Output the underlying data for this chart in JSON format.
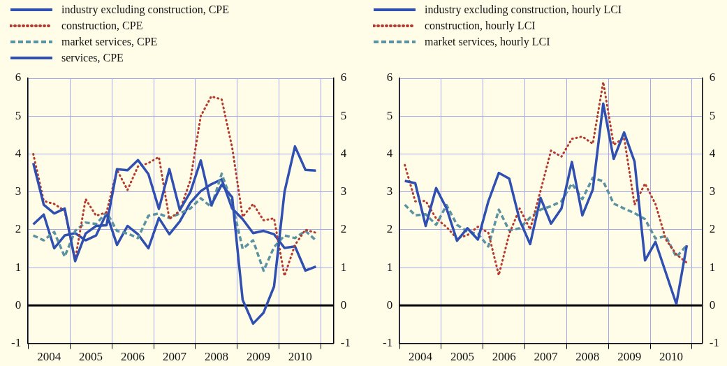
{
  "chart_data": [
    {
      "type": "line",
      "legend": "top left",
      "grid": true,
      "x": [
        2004.125,
        2004.375,
        2004.625,
        2004.875,
        2005.125,
        2005.375,
        2005.625,
        2005.875,
        2006.125,
        2006.375,
        2006.625,
        2006.875,
        2007.125,
        2007.375,
        2007.625,
        2007.875,
        2008.125,
        2008.375,
        2008.625,
        2008.875,
        2009.125,
        2009.375,
        2009.625,
        2009.875,
        2010.125,
        2010.375,
        2010.625,
        2010.875
      ],
      "series": [
        {
          "name": "industry excluding construction, CPE",
          "color": "#2f4fb1",
          "line_style": "solid",
          "values": [
            3.76,
            2.66,
            2.43,
            2.56,
            1.17,
            1.9,
            2.1,
            2.12,
            3.6,
            3.57,
            3.84,
            3.47,
            2.55,
            3.6,
            2.52,
            2.99,
            3.83,
            2.65,
            3.19,
            2.86,
            0.15,
            -0.48,
            -0.19,
            0.5,
            3.0,
            4.2,
            3.58,
            3.56
          ]
        },
        {
          "name": "construction, CPE",
          "color": "#b5392c",
          "line_style": "dotted",
          "values": [
            4.0,
            2.76,
            2.68,
            2.5,
            1.2,
            2.81,
            2.37,
            2.46,
            3.58,
            3.05,
            3.67,
            3.76,
            3.92,
            2.28,
            2.5,
            3.3,
            5.0,
            5.52,
            5.44,
            4.17,
            2.34,
            2.68,
            2.25,
            2.3,
            0.78,
            1.6,
            2.0,
            1.92
          ]
        },
        {
          "name": "market services, CPE",
          "color": "#5b93a3",
          "line_style": "dashed",
          "values": [
            1.85,
            1.72,
            1.94,
            1.29,
            1.97,
            2.19,
            2.15,
            2.46,
            1.97,
            1.9,
            1.78,
            2.37,
            2.43,
            2.31,
            2.43,
            2.56,
            2.83,
            2.6,
            3.48,
            2.7,
            1.5,
            1.72,
            0.92,
            1.54,
            1.85,
            1.78,
            1.97,
            1.72
          ]
        },
        {
          "name": "services, CPE",
          "color": "#2f4fb1",
          "line_style": "solid",
          "values": [
            2.14,
            2.4,
            1.51,
            1.85,
            1.91,
            1.72,
            1.85,
            2.43,
            1.6,
            2.1,
            1.88,
            1.51,
            2.31,
            1.88,
            2.22,
            2.71,
            3.02,
            3.2,
            3.33,
            2.56,
            2.28,
            1.91,
            1.97,
            1.88,
            1.52,
            1.56,
            0.92,
            1.03
          ]
        }
      ],
      "xlim": [
        2004,
        2011.3
      ],
      "xticks": [
        {
          "value": 2004,
          "label": null
        },
        {
          "value": 2004.5,
          "label": "2004"
        },
        {
          "value": 2005,
          "label": null
        },
        {
          "value": 2005.5,
          "label": "2005"
        },
        {
          "value": 2006,
          "label": null
        },
        {
          "value": 2006.5,
          "label": "2006"
        },
        {
          "value": 2007,
          "label": null
        },
        {
          "value": 2007.5,
          "label": "2007"
        },
        {
          "value": 2008,
          "label": null
        },
        {
          "value": 2008.5,
          "label": "2008"
        },
        {
          "value": 2009,
          "label": null
        },
        {
          "value": 2009.5,
          "label": "2009"
        },
        {
          "value": 2010,
          "label": null
        },
        {
          "value": 2010.5,
          "label": "2010"
        },
        {
          "value": 2011,
          "label": null
        }
      ],
      "ylim": [
        -1,
        6
      ],
      "yticks": [
        -1,
        0,
        1,
        2,
        3,
        4,
        5,
        6
      ],
      "y2lim": [
        -1,
        6
      ],
      "y2ticks": [
        -1,
        0,
        1,
        2,
        3,
        4,
        5,
        6
      ],
      "ref_lines": [
        {
          "axis": "y",
          "value": 0,
          "color": "#000000"
        }
      ]
    },
    {
      "type": "line",
      "legend": "top left",
      "grid": true,
      "x": [
        2004.125,
        2004.375,
        2004.625,
        2004.875,
        2005.125,
        2005.375,
        2005.625,
        2005.875,
        2006.125,
        2006.375,
        2006.625,
        2006.875,
        2007.125,
        2007.375,
        2007.625,
        2007.875,
        2008.125,
        2008.375,
        2008.625,
        2008.875,
        2009.125,
        2009.375,
        2009.625,
        2009.875,
        2010.125,
        2010.375,
        2010.625,
        2010.875
      ],
      "series": [
        {
          "name": "industry excluding construction, hourly LCI",
          "color": "#2f4fb1",
          "line_style": "solid",
          "values": [
            3.29,
            3.23,
            2.1,
            3.1,
            2.56,
            1.71,
            2.04,
            1.74,
            2.75,
            3.5,
            3.35,
            2.25,
            1.62,
            2.84,
            2.16,
            2.56,
            3.79,
            2.38,
            3.06,
            5.33,
            3.87,
            4.57,
            3.8,
            1.19,
            1.68,
            0.86,
            0.04,
            1.59
          ]
        },
        {
          "name": "construction, hourly LCI",
          "color": "#b5392c",
          "line_style": "dotted",
          "values": [
            3.71,
            2.75,
            2.76,
            2.3,
            2.07,
            1.77,
            1.86,
            2.08,
            1.92,
            0.8,
            1.89,
            2.56,
            2.01,
            3.03,
            4.09,
            3.93,
            4.4,
            4.46,
            4.27,
            5.9,
            4.24,
            4.43,
            2.66,
            3.22,
            2.68,
            1.74,
            1.35,
            1.13
          ]
        },
        {
          "name": "market services, hourly LCI",
          "color": "#5b93a3",
          "line_style": "dashed",
          "values": [
            2.66,
            2.38,
            2.41,
            2.13,
            2.65,
            2.13,
            1.95,
            1.89,
            1.56,
            2.53,
            1.98,
            2.04,
            2.32,
            2.53,
            2.62,
            2.75,
            3.22,
            2.81,
            3.37,
            3.28,
            2.69,
            2.56,
            2.44,
            2.28,
            1.77,
            1.83,
            1.28,
            1.59
          ]
        }
      ],
      "xlim": [
        2004,
        2011.25
      ],
      "xticks": [
        {
          "value": 2004,
          "label": null
        },
        {
          "value": 2004.5,
          "label": "2004"
        },
        {
          "value": 2005,
          "label": null
        },
        {
          "value": 2005.5,
          "label": "2005"
        },
        {
          "value": 2006,
          "label": null
        },
        {
          "value": 2006.5,
          "label": "2006"
        },
        {
          "value": 2007,
          "label": null
        },
        {
          "value": 2007.5,
          "label": "2007"
        },
        {
          "value": 2008,
          "label": null
        },
        {
          "value": 2008.5,
          "label": "2008"
        },
        {
          "value": 2009,
          "label": null
        },
        {
          "value": 2009.5,
          "label": "2009"
        },
        {
          "value": 2010,
          "label": null
        },
        {
          "value": 2010.5,
          "label": "2010"
        },
        {
          "value": 2011,
          "label": null
        }
      ],
      "ylim": [
        -1,
        6
      ],
      "yticks": [
        -1,
        0,
        1,
        2,
        3,
        4,
        5,
        6
      ],
      "y2lim": [
        -1,
        6
      ],
      "y2ticks": [
        -1,
        0,
        1,
        2,
        3,
        4,
        5,
        6
      ],
      "ref_lines": [
        {
          "axis": "y",
          "value": 0,
          "color": "#000000"
        }
      ]
    }
  ]
}
